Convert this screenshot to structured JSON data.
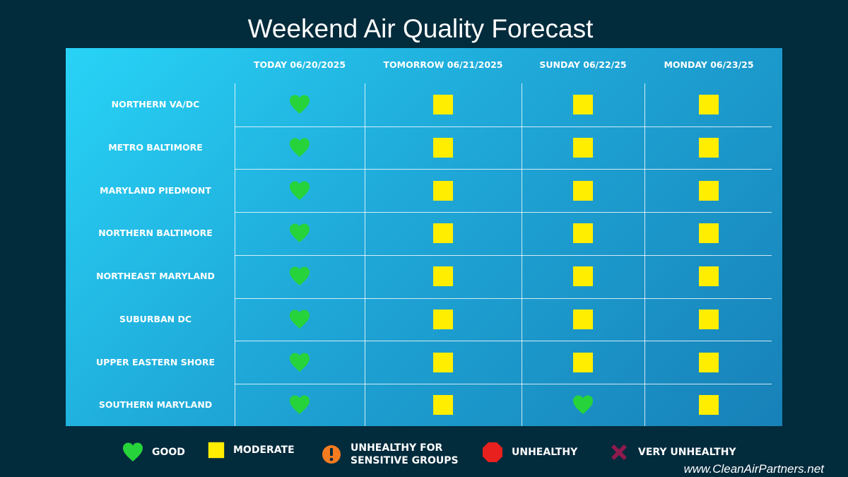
{
  "title": "Weekend Air Quality Forecast",
  "columns": [
    "TODAY 06/20/2025",
    "TOMORROW 06/21/2025",
    "SUNDAY 06/22/25",
    "MONDAY 06/23/25"
  ],
  "rows": [
    {
      "region": "NORTHERN VA/DC",
      "forecast": [
        "good",
        "moderate",
        "moderate",
        "moderate"
      ]
    },
    {
      "region": "METRO BALTIMORE",
      "forecast": [
        "good",
        "moderate",
        "moderate",
        "moderate"
      ]
    },
    {
      "region": "MARYLAND PIEDMONT",
      "forecast": [
        "good",
        "moderate",
        "moderate",
        "moderate"
      ]
    },
    {
      "region": "NORTHERN BALTIMORE",
      "forecast": [
        "good",
        "moderate",
        "moderate",
        "moderate"
      ]
    },
    {
      "region": "NORTHEAST MARYLAND",
      "forecast": [
        "good",
        "moderate",
        "moderate",
        "moderate"
      ]
    },
    {
      "region": "SUBURBAN DC",
      "forecast": [
        "good",
        "moderate",
        "moderate",
        "moderate"
      ]
    },
    {
      "region": "UPPER EASTERN SHORE",
      "forecast": [
        "good",
        "moderate",
        "moderate",
        "moderate"
      ]
    },
    {
      "region": "SOUTHERN MARYLAND",
      "forecast": [
        "good",
        "moderate",
        "good",
        "moderate"
      ]
    }
  ],
  "legend": [
    {
      "key": "good",
      "label": "GOOD",
      "icon": "heart-icon",
      "color": "#27d33a"
    },
    {
      "key": "moderate",
      "label": "MODERATE",
      "icon": "square-icon",
      "color": "#ffee00"
    },
    {
      "key": "usg",
      "label": "UNHEALTHY FOR\nSENSITIVE GROUPS",
      "icon": "exclamation-circle-icon",
      "color": "#f47b20"
    },
    {
      "key": "unhealthy",
      "label": "UNHEALTHY",
      "icon": "octagon-icon",
      "color": "#e8201e"
    },
    {
      "key": "very_unhealthy",
      "label": "VERY UNHEALTHY",
      "icon": "x-icon",
      "color": "#8e1a4e"
    }
  ],
  "website": "www.CleanAirPartners.net"
}
